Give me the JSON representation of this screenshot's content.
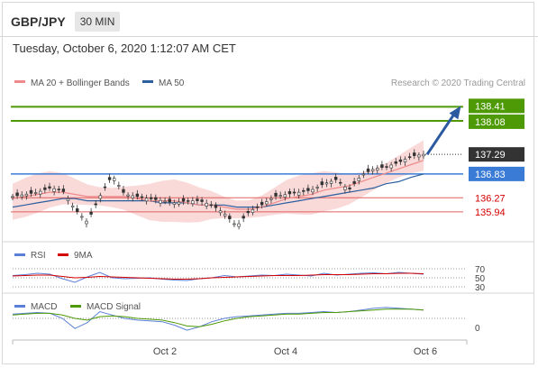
{
  "header": {
    "symbol": "GBP/JPY",
    "interval": "30 MIN"
  },
  "datetime": "Tuesday, October 6, 2020 1:12:07 AM CET",
  "colors": {
    "ma20": "#ee8a8a",
    "ma50": "#2c5f9e",
    "band_fill": "#f9d2d2",
    "resistance": "#4e9a06",
    "pivot": "#3a7bd5",
    "support": "#e06060",
    "arrow": "#2c5aa0",
    "last_price_bg": "#333333",
    "rsi_line": "#5b7fd6",
    "rsi_ma": "#d40000",
    "macd_line": "#5b7fd6",
    "macd_signal": "#4e9a06"
  },
  "legend": {
    "ma20_label": "MA 20 + Bollinger Bands",
    "ma50_label": "MA 50",
    "copyright": "Research © 2020 Trading Central"
  },
  "price_levels": {
    "resistance_1": "138.41",
    "resistance_2": "138.08",
    "last_price": "137.29",
    "pivot": "136.83",
    "support_1": "136.27",
    "support_2": "135.94"
  },
  "rsi_panel": {
    "label": "RSI",
    "ma_label": "9MA",
    "ticks": [
      "70",
      "50",
      "30"
    ]
  },
  "macd_panel": {
    "label": "MACD",
    "signal_label": "MACD Signal",
    "ticks": [
      "0"
    ]
  },
  "x_ticks": [
    "Oct 2",
    "Oct 4",
    "Oct 6"
  ],
  "chart_data": {
    "type": "line",
    "title": "GBP/JPY 30 MIN",
    "ylim": [
      135.3,
      138.8
    ],
    "x_labels": [
      "Oct 2",
      "Oct 4",
      "Oct 6"
    ],
    "series": [
      {
        "name": "price",
        "values": [
          136.3,
          136.35,
          136.4,
          136.5,
          136.45,
          136.0,
          135.7,
          136.3,
          136.8,
          136.35,
          136.3,
          136.25,
          136.2,
          136.15,
          136.2,
          136.2,
          136.1,
          135.9,
          135.6,
          135.95,
          136.1,
          136.3,
          136.35,
          136.4,
          136.45,
          136.6,
          136.7,
          136.45,
          136.8,
          136.95,
          137.0,
          137.1,
          137.25,
          137.29
        ]
      },
      {
        "name": "MA 20 + Bollinger Bands",
        "values": [
          136.25,
          136.3,
          136.35,
          136.4,
          136.4,
          136.35,
          136.3,
          136.3,
          136.3,
          136.3,
          136.25,
          136.2,
          136.2,
          136.2,
          136.15,
          136.1,
          136.1,
          136.05,
          136.0,
          136.0,
          136.05,
          136.15,
          136.25,
          136.3,
          136.35,
          136.45,
          136.5,
          136.55,
          136.65,
          136.75,
          136.85,
          136.95,
          137.05,
          137.15
        ]
      },
      {
        "name": "MA 50",
        "values": [
          136.05,
          136.1,
          136.15,
          136.2,
          136.25,
          136.25,
          136.2,
          136.2,
          136.2,
          136.2,
          136.2,
          136.2,
          136.15,
          136.15,
          136.15,
          136.1,
          136.1,
          136.1,
          136.05,
          136.05,
          136.05,
          136.1,
          136.15,
          136.2,
          136.25,
          136.3,
          136.35,
          136.4,
          136.45,
          136.5,
          136.6,
          136.65,
          136.75,
          136.83
        ]
      },
      {
        "name": "RSI",
        "values": [
          55,
          57,
          60,
          58,
          48,
          40,
          52,
          62,
          50,
          48,
          49,
          50,
          47,
          45,
          44,
          48,
          50,
          55,
          52,
          54,
          56,
          55,
          58,
          56,
          54,
          60,
          56,
          58,
          60,
          61,
          59,
          62,
          60,
          58
        ]
      },
      {
        "name": "9MA",
        "values": [
          54,
          55,
          56,
          56,
          53,
          50,
          51,
          53,
          52,
          51,
          50,
          49,
          48,
          47,
          47,
          48,
          50,
          51,
          52,
          53,
          54,
          55,
          55,
          55,
          56,
          57,
          57,
          57,
          58,
          59,
          59,
          60,
          60,
          59
        ]
      },
      {
        "name": "MACD",
        "values": [
          0.05,
          0.06,
          0.07,
          0.06,
          0.0,
          -0.12,
          -0.05,
          0.08,
          0.04,
          0.0,
          -0.02,
          -0.03,
          -0.04,
          -0.08,
          -0.14,
          -0.1,
          -0.04,
          0.0,
          0.02,
          0.03,
          0.04,
          0.05,
          0.06,
          0.06,
          0.07,
          0.08,
          0.07,
          0.08,
          0.1,
          0.12,
          0.13,
          0.12,
          0.11,
          0.1
        ]
      },
      {
        "name": "MACD Signal",
        "values": [
          0.04,
          0.05,
          0.06,
          0.06,
          0.04,
          0.0,
          -0.02,
          0.02,
          0.03,
          0.02,
          0.0,
          -0.01,
          -0.02,
          -0.05,
          -0.09,
          -0.1,
          -0.07,
          -0.03,
          0.0,
          0.02,
          0.03,
          0.04,
          0.05,
          0.05,
          0.06,
          0.07,
          0.07,
          0.08,
          0.09,
          0.1,
          0.11,
          0.11,
          0.11,
          0.1
        ]
      }
    ]
  }
}
